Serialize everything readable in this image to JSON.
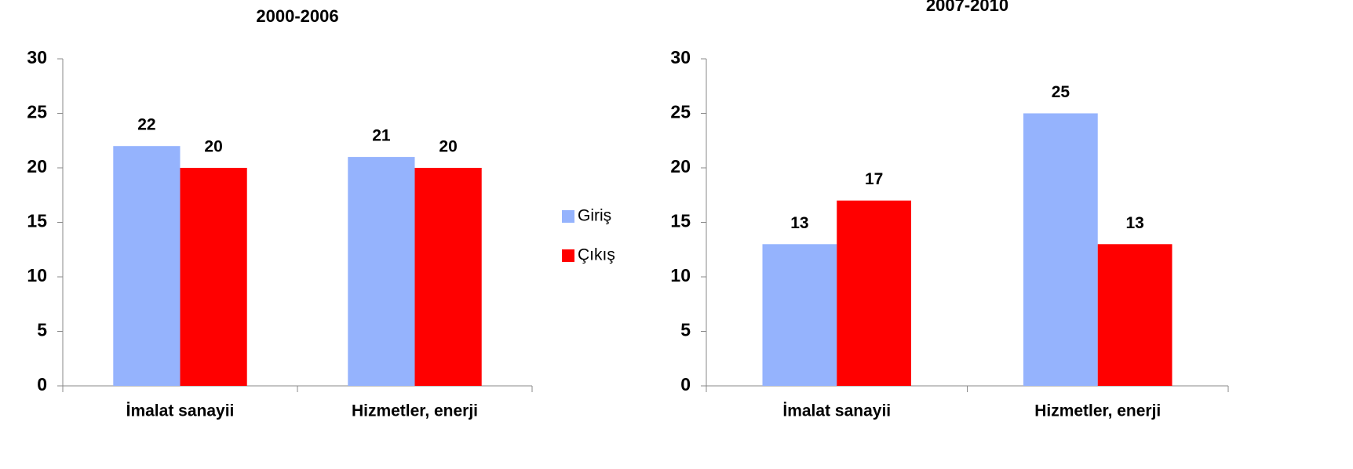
{
  "chart_data": [
    {
      "type": "bar",
      "title": "2000-2006",
      "categories": [
        "İmalat sanayii",
        "Hizmetler, enerji"
      ],
      "series": [
        {
          "name": "Giriş",
          "color": "#95b3fd",
          "values": [
            22,
            21
          ]
        },
        {
          "name": "Çıkış",
          "color": "#ff0000",
          "values": [
            20,
            20
          ]
        }
      ],
      "ylim": [
        0,
        30
      ],
      "yticks": [
        0,
        5,
        10,
        15,
        20,
        25,
        30
      ]
    },
    {
      "type": "bar",
      "title": "2007-2010",
      "categories": [
        "İmalat sanayii",
        "Hizmetler, enerji"
      ],
      "series": [
        {
          "color": "#95b3fd",
          "values": [
            13,
            25
          ]
        },
        {
          "color": "#ff0000",
          "values": [
            17,
            13
          ]
        }
      ],
      "ylim": [
        0,
        30
      ],
      "yticks": [
        0,
        5,
        10,
        15,
        20,
        25,
        30
      ]
    }
  ]
}
